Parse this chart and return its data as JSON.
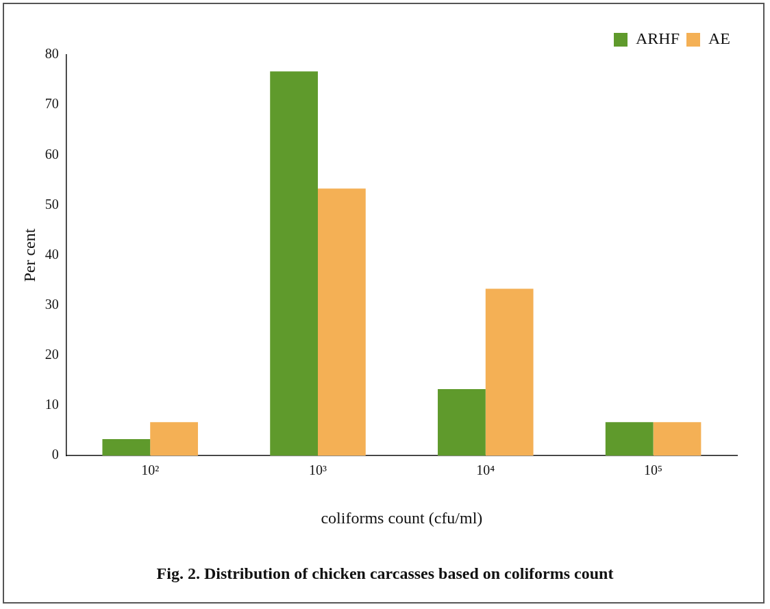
{
  "chart_data": {
    "type": "bar",
    "categories": [
      "10²",
      "10³",
      "10⁴",
      "10⁵"
    ],
    "series": [
      {
        "name": "ARHF",
        "color": "#5f9a2c",
        "values": [
          3.3,
          76.7,
          13.3,
          6.7
        ]
      },
      {
        "name": "AE",
        "color": "#f4b055",
        "values": [
          6.7,
          53.3,
          33.3,
          6.7
        ]
      }
    ],
    "ylim": [
      0,
      80
    ],
    "yticks": [
      0,
      10,
      20,
      30,
      40,
      50,
      60,
      70,
      80
    ],
    "xlabel": "coliforms count (cfu/ml)",
    "ylabel": "Per cent",
    "annotations": [
      "Fig. 2. Distribution of chicken carcasses based on coliforms count"
    ],
    "legend": "top right",
    "grid": false
  }
}
